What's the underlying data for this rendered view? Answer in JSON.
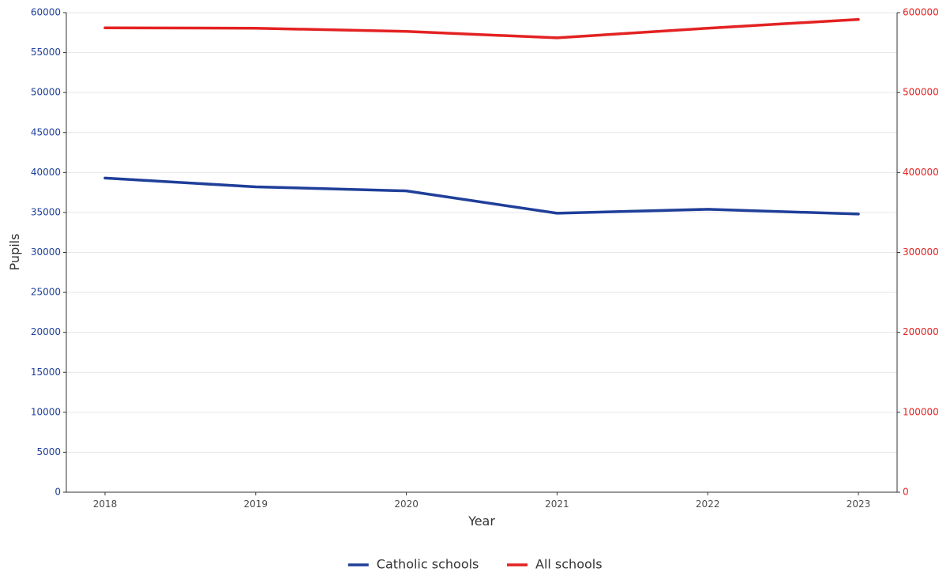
{
  "chart_data": {
    "type": "line",
    "xlabel": "Year",
    "ylabel": "Pupils",
    "x": [
      2018,
      2019,
      2020,
      2021,
      2022,
      2023
    ],
    "x_tick_labels": [
      "2018",
      "2019",
      "2020",
      "2021",
      "2022",
      "2023"
    ],
    "y_left": {
      "range": [
        0,
        60000
      ],
      "ticks": [
        "0",
        "5000",
        "10000",
        "15000",
        "20000",
        "25000",
        "30000",
        "35000",
        "40000",
        "45000",
        "50000",
        "55000",
        "60000"
      ],
      "color": "#1f3f99"
    },
    "y_right": {
      "range": [
        0,
        600000
      ],
      "ticks": [
        "0",
        "100000",
        "200000",
        "300000",
        "400000",
        "500000",
        "600000"
      ],
      "color": "#e32222"
    },
    "series": [
      {
        "name": "Catholic schools",
        "axis": "left",
        "color": "#1f3f99",
        "values": [
          39300,
          38200,
          37700,
          34900,
          35400,
          34800
        ]
      },
      {
        "name": "All schools",
        "axis": "right",
        "color": "#e32222",
        "values": [
          581000,
          580500,
          576500,
          568500,
          580500,
          591500
        ]
      }
    ],
    "grid": "horizontal",
    "legend_position": "bottom"
  }
}
